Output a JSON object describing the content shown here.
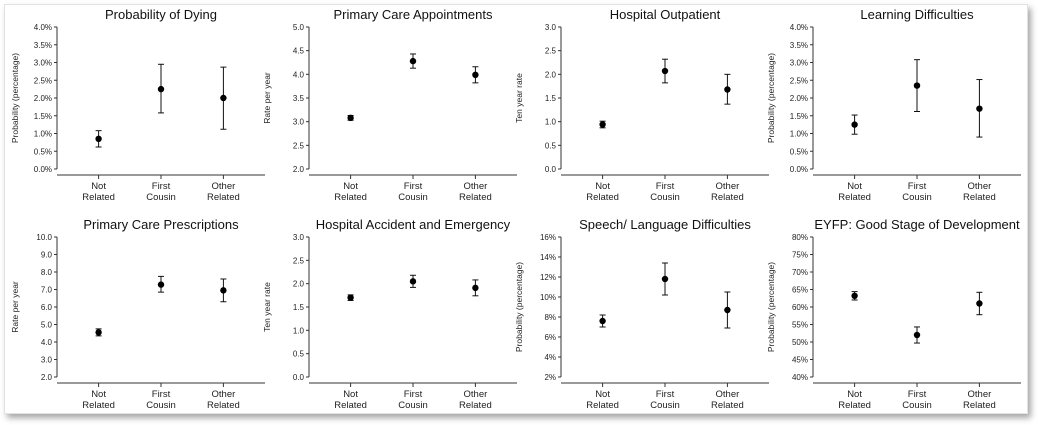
{
  "chart_data": [
    {
      "type": "scatter",
      "title": "Probability of Dying",
      "ylabel": "Probability (percentage)",
      "categories": [
        "Not Related",
        "First Cousin",
        "Other Related"
      ],
      "values": [
        0.85,
        2.25,
        2.0
      ],
      "lower": [
        0.62,
        1.58,
        1.12
      ],
      "upper": [
        1.08,
        2.95,
        2.87
      ],
      "ylim": [
        0,
        4
      ],
      "yticks": [
        0,
        0.5,
        1,
        1.5,
        2,
        2.5,
        3,
        3.5,
        4
      ],
      "ytick_labels": [
        "0.0%",
        "0.5%",
        "1.0%",
        "1.5%",
        "2.0%",
        "2.5%",
        "3.0%",
        "3.5%",
        "4.0%"
      ]
    },
    {
      "type": "scatter",
      "title": "Primary Care Appointments",
      "ylabel": "Rate per year",
      "categories": [
        "Not Related",
        "First Cousin",
        "Other Related"
      ],
      "values": [
        3.08,
        4.28,
        3.99
      ],
      "lower": [
        3.03,
        4.13,
        3.82
      ],
      "upper": [
        3.13,
        4.43,
        4.16
      ],
      "ylim": [
        2,
        5
      ],
      "yticks": [
        2,
        2.5,
        3,
        3.5,
        4,
        4.5,
        5
      ],
      "ytick_labels": [
        "2.0",
        "2.5",
        "3.0",
        "3.5",
        "4.0",
        "4.5",
        "5.0"
      ]
    },
    {
      "type": "scatter",
      "title": "Hospital Outpatient",
      "ylabel": "Ten year rate",
      "categories": [
        "Not Related",
        "First Cousin",
        "Other Related"
      ],
      "values": [
        0.94,
        2.07,
        1.68
      ],
      "lower": [
        0.87,
        1.82,
        1.37
      ],
      "upper": [
        1.01,
        2.32,
        2.0
      ],
      "ylim": [
        0,
        3
      ],
      "yticks": [
        0,
        0.5,
        1,
        1.5,
        2,
        2.5,
        3
      ],
      "ytick_labels": [
        "0.0",
        "0.5",
        "1.0",
        "1.5",
        "2.0",
        "2.5",
        "3.0"
      ]
    },
    {
      "type": "scatter",
      "title": "Learning Difficulties",
      "ylabel": "Probability (percentage)",
      "categories": [
        "Not Related",
        "First Cousin",
        "Other Related"
      ],
      "values": [
        1.25,
        2.35,
        1.7
      ],
      "lower": [
        0.98,
        1.62,
        0.9
      ],
      "upper": [
        1.52,
        3.08,
        2.52
      ],
      "ylim": [
        0,
        4
      ],
      "yticks": [
        0,
        0.5,
        1,
        1.5,
        2,
        2.5,
        3,
        3.5,
        4
      ],
      "ytick_labels": [
        "0.0%",
        "0.5%",
        "1.0%",
        "1.5%",
        "2.0%",
        "2.5%",
        "3.0%",
        "3.5%",
        "4.0%"
      ]
    },
    {
      "type": "scatter",
      "title": "Primary Care Prescriptions",
      "ylabel": "Rate per year",
      "categories": [
        "Not Related",
        "First Cousin",
        "Other Related"
      ],
      "values": [
        4.55,
        7.28,
        6.95
      ],
      "lower": [
        4.35,
        6.85,
        6.3
      ],
      "upper": [
        4.75,
        7.75,
        7.6
      ],
      "ylim": [
        2,
        10
      ],
      "yticks": [
        2,
        3,
        4,
        5,
        6,
        7,
        8,
        9,
        10
      ],
      "ytick_labels": [
        "2.0",
        "3.0",
        "4.0",
        "5.0",
        "6.0",
        "7.0",
        "8.0",
        "9.0",
        "10.0"
      ]
    },
    {
      "type": "scatter",
      "title": "Hospital Accident and Emergency",
      "ylabel": "Ten year rate",
      "categories": [
        "Not Related",
        "First Cousin",
        "Other Related"
      ],
      "values": [
        1.7,
        2.05,
        1.91
      ],
      "lower": [
        1.64,
        1.92,
        1.74
      ],
      "upper": [
        1.76,
        2.18,
        2.08
      ],
      "ylim": [
        0,
        3
      ],
      "yticks": [
        0,
        0.5,
        1,
        1.5,
        2,
        2.5,
        3
      ],
      "ytick_labels": [
        "0.0",
        "0.5",
        "1.0",
        "1.5",
        "2.0",
        "2.5",
        "3.0"
      ]
    },
    {
      "type": "scatter",
      "title": "Speech/ Language Difficulties",
      "ylabel": "Probability (percentage)",
      "categories": [
        "Not Related",
        "First Cousin",
        "Other Related"
      ],
      "values": [
        7.6,
        11.8,
        8.7
      ],
      "lower": [
        7.0,
        10.2,
        6.9
      ],
      "upper": [
        8.2,
        13.4,
        10.5
      ],
      "ylim": [
        2,
        16
      ],
      "yticks": [
        2,
        4,
        6,
        8,
        10,
        12,
        14,
        16
      ],
      "ytick_labels": [
        "2%",
        "4%",
        "6%",
        "8%",
        "10%",
        "12%",
        "14%",
        "16%"
      ]
    },
    {
      "type": "scatter",
      "title": "EYFP: Good Stage of Development",
      "ylabel": "Probability (percentage)",
      "categories": [
        "Not Related",
        "First Cousin",
        "Other Related"
      ],
      "values": [
        63.2,
        52.0,
        61.0
      ],
      "lower": [
        62.0,
        49.7,
        57.8
      ],
      "upper": [
        64.4,
        54.3,
        64.2
      ],
      "ylim": [
        40,
        80
      ],
      "yticks": [
        40,
        45,
        50,
        55,
        60,
        65,
        70,
        75,
        80
      ],
      "ytick_labels": [
        "40%",
        "45%",
        "50%",
        "55%",
        "60%",
        "65%",
        "70%",
        "75%",
        "80%"
      ]
    }
  ]
}
